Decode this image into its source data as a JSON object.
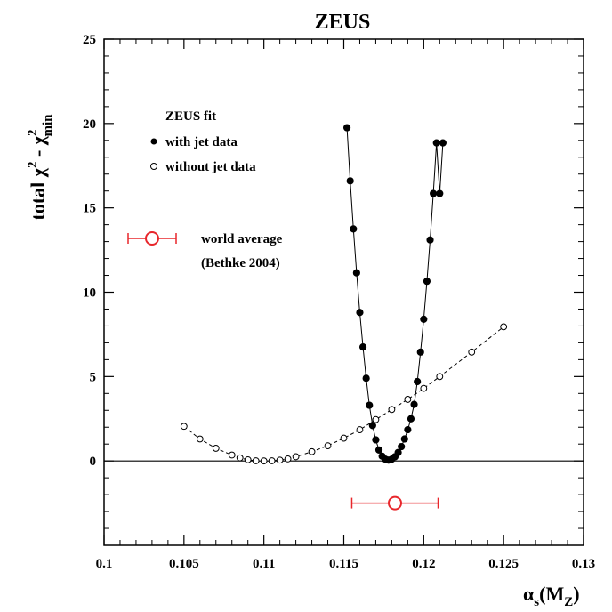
{
  "chart_data": {
    "type": "line",
    "title": "ZEUS",
    "xlabel": {
      "main": "α",
      "sub": "s",
      "paren_open": "(M",
      "paren_sub": "Z",
      "paren_close": ")"
    },
    "ylabel": {
      "prefix": "total χ",
      "sup1": "2",
      "mid": " - χ",
      "sup2": "2",
      "sub2": "min"
    },
    "xlim": [
      0.1,
      0.13
    ],
    "ylim": [
      -5,
      25
    ],
    "x_ticks": [
      "0.1",
      "0.105",
      "0.11",
      "0.115",
      "0.12",
      "0.125",
      "0.13"
    ],
    "y_ticks": [
      "0",
      "5",
      "10",
      "15",
      "20",
      "25"
    ],
    "legend": {
      "title": "ZEUS fit",
      "with_label": "with jet data",
      "without_label": "without jet data",
      "world_line1": "world average",
      "world_line2": "(Bethke 2004)"
    },
    "series": [
      {
        "name": "with jet data",
        "marker": "filled-circle",
        "line": "solid",
        "x": [
          0.1152,
          0.1154,
          0.1156,
          0.1158,
          0.116,
          0.1162,
          0.1164,
          0.1166,
          0.1168,
          0.117,
          0.1172,
          0.1174,
          0.1176,
          0.1178,
          0.118,
          0.1182,
          0.1184,
          0.1186,
          0.1188,
          0.119,
          0.1192,
          0.1194,
          0.1196,
          0.1198,
          0.12,
          0.1202,
          0.1204,
          0.1206,
          0.1208,
          0.121,
          0.1212
        ],
        "y": [
          19.75,
          16.6,
          13.75,
          11.15,
          8.8,
          6.75,
          4.9,
          3.3,
          2.1,
          1.25,
          0.65,
          0.28,
          0.1,
          0.05,
          0.1,
          0.25,
          0.5,
          0.85,
          1.3,
          1.85,
          2.5,
          3.35,
          4.7,
          6.45,
          8.4,
          10.65,
          13.1,
          15.85,
          18.85,
          15.85,
          18.85
        ]
      },
      {
        "name": "without jet data",
        "marker": "open-circle",
        "line": "dashed",
        "x": [
          0.105,
          0.106,
          0.107,
          0.108,
          0.1085,
          0.109,
          0.1095,
          0.11,
          0.1105,
          0.111,
          0.1115,
          0.112,
          0.113,
          0.114,
          0.115,
          0.116,
          0.117,
          0.118,
          0.119,
          0.12,
          0.121,
          0.123,
          0.125
        ],
        "y": [
          2.05,
          1.3,
          0.75,
          0.35,
          0.18,
          0.07,
          0.01,
          0.0,
          0.01,
          0.05,
          0.12,
          0.25,
          0.55,
          0.9,
          1.35,
          1.85,
          2.45,
          3.05,
          3.65,
          4.3,
          5.0,
          6.45,
          7.95
        ]
      }
    ],
    "world_average": {
      "value": 0.1182,
      "error": 0.0027,
      "y": -2.5
    },
    "colors": {
      "world_average": "#e8262b",
      "axis": "#000000"
    }
  }
}
